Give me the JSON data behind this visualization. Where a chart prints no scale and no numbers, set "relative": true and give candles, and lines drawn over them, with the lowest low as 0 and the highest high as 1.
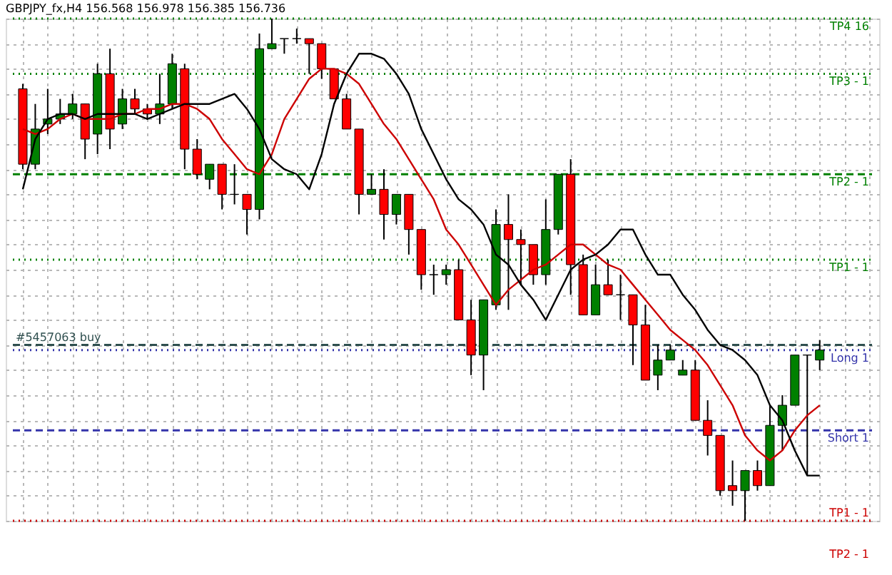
{
  "chart_data": {
    "type": "candlestick",
    "title": "GBPJPY_fx,H4  156.568 156.978 156.385 156.736",
    "relative": true,
    "grid": true,
    "tick_labels": false,
    "annotations": [
      "TP2 - 1"
    ],
    "categories": [
      null,
      null,
      null,
      null,
      null,
      null,
      null,
      null,
      null,
      null,
      null,
      null,
      null,
      null,
      null,
      null,
      null,
      null,
      null,
      null,
      null,
      null,
      null,
      null,
      null,
      null,
      null,
      null,
      null,
      null,
      null,
      null,
      null,
      null,
      null,
      null,
      null,
      null,
      null,
      null,
      null,
      null,
      null,
      null,
      null,
      null,
      null,
      null,
      null,
      null,
      null,
      null,
      null,
      null,
      null,
      null,
      null,
      null,
      null,
      null,
      null,
      null,
      null,
      null,
      null
    ],
    "ohlc": [
      [
        0.86,
        0.87,
        0.7,
        0.71
      ],
      [
        0.71,
        0.83,
        0.7,
        0.78
      ],
      [
        0.79,
        0.86,
        0.77,
        0.8
      ],
      [
        0.8,
        0.84,
        0.79,
        0.81
      ],
      [
        0.81,
        0.85,
        0.8,
        0.83
      ],
      [
        0.83,
        0.83,
        0.72,
        0.76
      ],
      [
        0.77,
        0.91,
        0.73,
        0.89
      ],
      [
        0.89,
        0.94,
        0.74,
        0.78
      ],
      [
        0.79,
        0.86,
        0.78,
        0.84
      ],
      [
        0.84,
        0.86,
        0.81,
        0.82
      ],
      [
        0.82,
        0.83,
        0.8,
        0.81
      ],
      [
        0.81,
        0.89,
        0.79,
        0.83
      ],
      [
        0.83,
        0.93,
        0.82,
        0.91
      ],
      [
        0.9,
        0.91,
        0.7,
        0.74
      ],
      [
        0.74,
        0.76,
        0.68,
        0.69
      ],
      [
        0.68,
        0.71,
        0.66,
        0.71
      ],
      [
        0.71,
        0.71,
        0.62,
        0.65
      ],
      [
        0.65,
        0.71,
        0.63,
        0.65
      ],
      [
        0.65,
        0.65,
        0.57,
        0.62
      ],
      [
        0.62,
        0.97,
        0.6,
        0.94
      ],
      [
        0.94,
        1.0,
        0.94,
        0.95
      ],
      [
        0.96,
        0.96,
        0.93,
        0.96
      ],
      [
        0.96,
        0.98,
        0.95,
        0.96
      ],
      [
        0.96,
        0.96,
        0.89,
        0.95
      ],
      [
        0.95,
        0.95,
        0.88,
        0.9
      ],
      [
        0.9,
        0.9,
        0.84,
        0.84
      ],
      [
        0.84,
        0.85,
        0.78,
        0.78
      ],
      [
        0.78,
        0.78,
        0.61,
        0.65
      ],
      [
        0.65,
        0.69,
        0.65,
        0.66
      ],
      [
        0.66,
        0.7,
        0.56,
        0.61
      ],
      [
        0.61,
        0.65,
        0.59,
        0.65
      ],
      [
        0.65,
        0.65,
        0.53,
        0.58
      ],
      [
        0.58,
        0.58,
        0.46,
        0.49
      ],
      [
        0.49,
        0.51,
        0.45,
        0.49
      ],
      [
        0.49,
        0.51,
        0.47,
        0.5
      ],
      [
        0.5,
        0.52,
        0.4,
        0.4
      ],
      [
        0.4,
        0.44,
        0.29,
        0.33
      ],
      [
        0.33,
        0.44,
        0.26,
        0.44
      ],
      [
        0.43,
        0.62,
        0.42,
        0.59
      ],
      [
        0.59,
        0.65,
        0.42,
        0.56
      ],
      [
        0.56,
        0.58,
        0.47,
        0.55
      ],
      [
        0.55,
        0.55,
        0.47,
        0.49
      ],
      [
        0.49,
        0.64,
        0.47,
        0.58
      ],
      [
        0.58,
        0.69,
        0.57,
        0.69
      ],
      [
        0.69,
        0.72,
        0.45,
        0.51
      ],
      [
        0.51,
        0.53,
        0.41,
        0.41
      ],
      [
        0.41,
        0.51,
        0.41,
        0.47
      ],
      [
        0.47,
        0.52,
        0.45,
        0.45
      ],
      [
        0.45,
        0.49,
        0.4,
        0.45
      ],
      [
        0.45,
        0.45,
        0.31,
        0.39
      ],
      [
        0.39,
        0.43,
        0.28,
        0.28
      ],
      [
        0.29,
        0.35,
        0.26,
        0.32
      ],
      [
        0.32,
        0.35,
        0.32,
        0.34
      ],
      [
        0.29,
        0.32,
        0.29,
        0.3
      ],
      [
        0.3,
        0.32,
        0.2,
        0.2
      ],
      [
        0.2,
        0.24,
        0.13,
        0.17
      ],
      [
        0.17,
        0.17,
        0.05,
        0.06
      ],
      [
        0.07,
        0.12,
        0.03,
        0.06
      ],
      [
        0.06,
        0.1,
        0.0,
        0.1
      ],
      [
        0.1,
        0.12,
        0.06,
        0.07
      ],
      [
        0.07,
        0.23,
        0.07,
        0.19
      ],
      [
        0.19,
        0.25,
        0.14,
        0.23
      ],
      [
        0.23,
        0.33,
        0.23,
        0.33
      ],
      [
        0.33,
        0.33,
        0.09,
        0.33
      ],
      [
        0.32,
        0.36,
        0.3,
        0.34
      ]
    ],
    "colors": [
      "#ff0000",
      "#008000",
      "#008000",
      "#008000",
      "#008000",
      "#ff0000",
      "#008000",
      "#ff0000",
      "#008000",
      "#ff0000",
      "#ff0000",
      "#008000",
      "#008000",
      "#ff0000",
      "#ff0000",
      "#008000",
      "#ff0000",
      "#000000",
      "#ff0000",
      "#008000",
      "#008000",
      "#000000",
      "#000000",
      "#ff0000",
      "#ff0000",
      "#ff0000",
      "#ff0000",
      "#ff0000",
      "#008000",
      "#ff0000",
      "#008000",
      "#ff0000",
      "#ff0000",
      "#000000",
      "#008000",
      "#ff0000",
      "#ff0000",
      "#008000",
      "#008000",
      "#ff0000",
      "#ff0000",
      "#ff0000",
      "#008000",
      "#008000",
      "#ff0000",
      "#ff0000",
      "#008000",
      "#ff0000",
      "#000000",
      "#ff0000",
      "#ff0000",
      "#008000",
      "#008000",
      "#008000",
      "#ff0000",
      "#ff0000",
      "#ff0000",
      "#ff0000",
      "#008000",
      "#ff0000",
      "#008000",
      "#008000",
      "#008000",
      "#000000",
      "#008000"
    ],
    "series": [
      {
        "type": "line",
        "color": "#cc0000",
        "values": [
          0.78,
          0.77,
          0.78,
          0.8,
          0.81,
          0.8,
          0.8,
          0.8,
          0.81,
          0.81,
          0.82,
          0.82,
          0.83,
          0.83,
          0.82,
          0.8,
          0.76,
          0.73,
          0.7,
          0.69,
          0.73,
          0.8,
          0.84,
          0.88,
          0.9,
          0.9,
          0.89,
          0.87,
          0.83,
          0.79,
          0.76,
          0.72,
          0.68,
          0.64,
          0.58,
          0.55,
          0.51,
          0.47,
          0.43,
          0.46,
          0.48,
          0.5,
          0.51,
          0.53,
          0.55,
          0.55,
          0.53,
          0.51,
          0.5,
          0.47,
          0.44,
          0.41,
          0.38,
          0.36,
          0.34,
          0.31,
          0.27,
          0.23,
          0.17,
          0.14,
          0.12,
          0.14,
          0.18,
          0.21,
          0.23
        ]
      },
      {
        "type": "line",
        "color": "#000000",
        "values": [
          0.66,
          0.76,
          0.8,
          0.81,
          0.81,
          0.8,
          0.81,
          0.81,
          0.81,
          0.81,
          0.8,
          0.81,
          0.82,
          0.83,
          0.83,
          0.83,
          0.84,
          0.85,
          0.82,
          0.78,
          0.72,
          0.7,
          0.69,
          0.66,
          0.73,
          0.83,
          0.89,
          0.93,
          0.93,
          0.92,
          0.89,
          0.85,
          0.78,
          0.73,
          0.68,
          0.64,
          0.62,
          0.59,
          0.53,
          0.51,
          0.47,
          0.44,
          0.4,
          0.45,
          0.5,
          0.52,
          0.53,
          0.55,
          0.58,
          0.58,
          0.53,
          0.49,
          0.49,
          0.45,
          0.42,
          0.38,
          0.35,
          0.34,
          0.32,
          0.29,
          0.23,
          0.2,
          0.14,
          0.09,
          0.09
        ]
      }
    ],
    "ref_lines": [
      {
        "axis": "y",
        "value": 1.0,
        "label": "TP4 16",
        "color": "#008000",
        "line_style": "dotted"
      },
      {
        "axis": "y",
        "value": 0.89,
        "label": "TP3 - 1",
        "color": "#008000",
        "line_style": "dotted"
      },
      {
        "axis": "y",
        "value": 0.69,
        "label": "TP2 - 1",
        "color": "#008000",
        "line_style": "dashed"
      },
      {
        "axis": "y",
        "value": 0.52,
        "label": "TP1 - 1",
        "color": "#008000",
        "line_style": "dotted"
      },
      {
        "axis": "y",
        "value": 0.35,
        "label": "#5457063 buy",
        "color": "#2f4f4f",
        "line_style": "dashed"
      },
      {
        "axis": "y",
        "value": 0.34,
        "label": "Long 1",
        "color": "#3333aa",
        "line_style": "dotted"
      },
      {
        "axis": "y",
        "value": 0.18,
        "label": "Short 1",
        "color": "#3333aa",
        "line_style": "dashed"
      },
      {
        "axis": "y",
        "value": 0.0,
        "label": "TP1 - 1",
        "color": "#cc0000",
        "line_style": "dotted"
      }
    ]
  }
}
